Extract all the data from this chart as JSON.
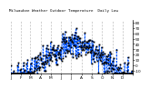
{
  "title": "Milwaukee Weather Outdoor Temperature  Daily Low",
  "line_color": "#0055FF",
  "marker_color": "#000000",
  "background_color": "#ffffff",
  "grid_color": "#aaaaaa",
  "xlim": [
    0,
    365
  ],
  "ylim": [
    -15,
    85
  ],
  "yticks": [
    -10,
    0,
    10,
    20,
    30,
    40,
    50,
    60,
    70,
    80
  ],
  "month_starts": [
    0,
    31,
    59,
    90,
    120,
    151,
    181,
    212,
    243,
    273,
    304,
    334,
    365
  ],
  "month_labels": [
    "J",
    "F",
    "M",
    "A",
    "M",
    "J",
    "J",
    "A",
    "S",
    "O",
    "N",
    "D",
    ""
  ],
  "seed": 7,
  "noise_scale": 14,
  "base_min": 8,
  "base_amplitude": 33,
  "phase_shift": 100
}
